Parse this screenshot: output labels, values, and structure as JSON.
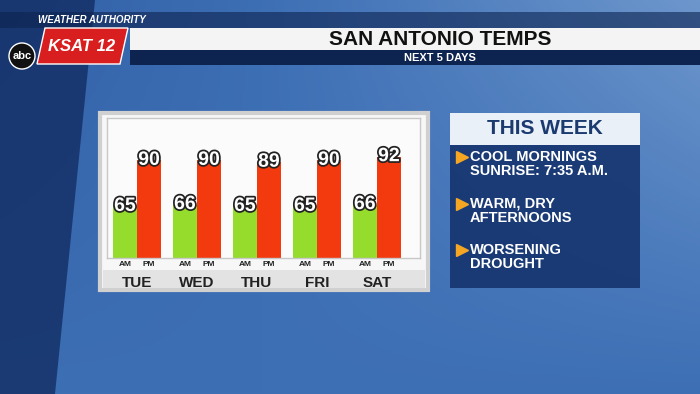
{
  "chart_data": {
    "type": "bar",
    "title": "SAN ANTONIO TEMPS",
    "subtitle": "NEXT 5 DAYS",
    "categories": [
      "TUE",
      "WED",
      "THU",
      "FRI",
      "SAT"
    ],
    "series": [
      {
        "name": "AM",
        "color": "#95dc2c",
        "values": [
          65,
          66,
          65,
          65,
          66
        ]
      },
      {
        "name": "PM",
        "color": "#f23a0e",
        "values": [
          90,
          90,
          89,
          90,
          92
        ]
      }
    ],
    "ylim": [
      37,
      113
    ],
    "yticks": [],
    "data_labels": true,
    "tick_labels": "x",
    "grid": false
  },
  "branding": {
    "brand": "WEATHER AUTHORITY",
    "station": "KSAT 12",
    "network": "abc"
  },
  "sidebar": {
    "title": "THIS WEEK",
    "items": [
      "COOL MORNINGS\nSUNRISE: 7:35 A.M.",
      "WARM, DRY\nAFTERNOONS",
      "WORSENING\nDROUGHT"
    ]
  }
}
